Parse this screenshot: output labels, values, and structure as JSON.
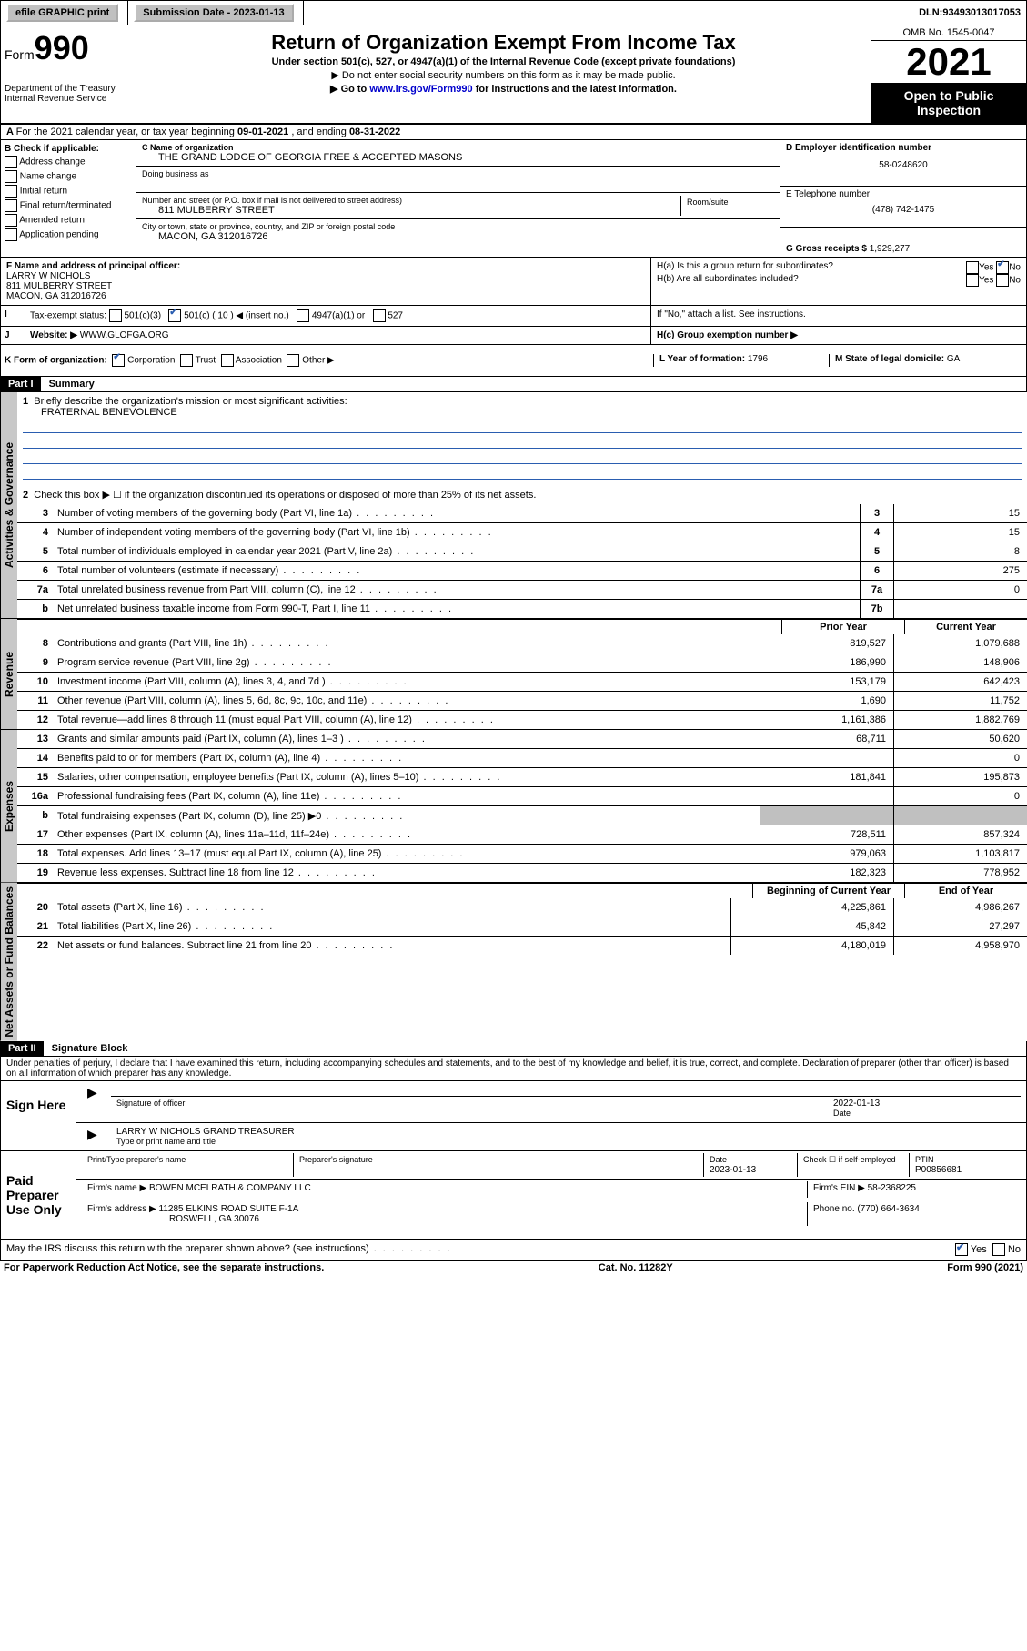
{
  "topbar": {
    "efile": "efile GRAPHIC print",
    "submission_label": "Submission Date - ",
    "submission_date": "2023-01-13",
    "dln_label": "DLN: ",
    "dln": "93493013017053"
  },
  "header": {
    "form_prefix": "Form",
    "form_number": "990",
    "dept": "Department of the Treasury\nInternal Revenue Service",
    "title": "Return of Organization Exempt From Income Tax",
    "subtitle": "Under section 501(c), 527, or 4947(a)(1) of the Internal Revenue Code (except private foundations)",
    "note1": "▶ Do not enter social security numbers on this form as it may be made public.",
    "note2_pre": "▶ Go to ",
    "note2_link": "www.irs.gov/Form990",
    "note2_post": " for instructions and the latest information.",
    "omb": "OMB No. 1545-0047",
    "year": "2021",
    "inspection": "Open to Public Inspection"
  },
  "section_a": {
    "text_pre": "For the 2021 calendar year, or tax year beginning ",
    "begin": "09-01-2021",
    "mid": " , and ending ",
    "end": "08-31-2022"
  },
  "section_b": {
    "label": "B Check if applicable:",
    "items": [
      "Address change",
      "Name change",
      "Initial return",
      "Final return/terminated",
      "Amended return",
      "Application pending"
    ]
  },
  "section_c": {
    "name_label": "C Name of organization",
    "name": "THE GRAND LODGE OF GEORGIA FREE & ACCEPTED MASONS",
    "dba_label": "Doing business as",
    "street_label": "Number and street (or P.O. box if mail is not delivered to street address)",
    "room_label": "Room/suite",
    "street": "811 MULBERRY STREET",
    "city_label": "City or town, state or province, country, and ZIP or foreign postal code",
    "city": "MACON, GA  312016726"
  },
  "section_d": {
    "label": "D Employer identification number",
    "value": "58-0248620"
  },
  "section_e": {
    "label": "E Telephone number",
    "value": "(478) 742-1475"
  },
  "section_g": {
    "label": "G Gross receipts $ ",
    "value": "1,929,277"
  },
  "section_f": {
    "label": "F  Name and address of principal officer:",
    "name": "LARRY W NICHOLS",
    "addr1": "811 MULBERRY STREET",
    "addr2": "MACON, GA  312016726"
  },
  "section_h": {
    "ha": "H(a)  Is this a group return for subordinates?",
    "hb": "H(b)  Are all subordinates included?",
    "hb_note": "If \"No,\" attach a list. See instructions.",
    "hc": "H(c)  Group exemption number ▶",
    "yes": "Yes",
    "no": "No"
  },
  "section_i": {
    "label": "Tax-exempt status:",
    "opt1": "501(c)(3)",
    "opt2": "501(c) ( 10 ) ◀ (insert no.)",
    "opt3": "4947(a)(1) or",
    "opt4": "527"
  },
  "section_j": {
    "label": "Website: ▶ ",
    "value": "WWW.GLOFGA.ORG"
  },
  "section_k": {
    "label": "K Form of organization:",
    "opts": [
      "Corporation",
      "Trust",
      "Association",
      "Other ▶"
    ]
  },
  "section_l": {
    "label": "L Year of formation: ",
    "value": "1796"
  },
  "section_m": {
    "label": "M State of legal domicile: ",
    "value": "GA"
  },
  "part1": {
    "header": "Part I",
    "title": "Summary",
    "q1": "Briefly describe the organization's mission or most significant activities:",
    "q1_answer": "FRATERNAL BENEVOLENCE",
    "q2": "Check this box ▶ ☐  if the organization discontinued its operations or disposed of more than 25% of its net assets.",
    "lines_gov": [
      {
        "n": "3",
        "t": "Number of voting members of the governing body (Part VI, line 1a)",
        "box": "3",
        "v": "15"
      },
      {
        "n": "4",
        "t": "Number of independent voting members of the governing body (Part VI, line 1b)",
        "box": "4",
        "v": "15"
      },
      {
        "n": "5",
        "t": "Total number of individuals employed in calendar year 2021 (Part V, line 2a)",
        "box": "5",
        "v": "8"
      },
      {
        "n": "6",
        "t": "Total number of volunteers (estimate if necessary)",
        "box": "6",
        "v": "275"
      },
      {
        "n": "7a",
        "t": "Total unrelated business revenue from Part VIII, column (C), line 12",
        "box": "7a",
        "v": "0"
      },
      {
        "n": "b",
        "t": "Net unrelated business taxable income from Form 990-T, Part I, line 11",
        "box": "7b",
        "v": ""
      }
    ],
    "col_prior": "Prior Year",
    "col_current": "Current Year",
    "lines_rev": [
      {
        "n": "8",
        "t": "Contributions and grants (Part VIII, line 1h)",
        "p": "819,527",
        "c": "1,079,688"
      },
      {
        "n": "9",
        "t": "Program service revenue (Part VIII, line 2g)",
        "p": "186,990",
        "c": "148,906"
      },
      {
        "n": "10",
        "t": "Investment income (Part VIII, column (A), lines 3, 4, and 7d )",
        "p": "153,179",
        "c": "642,423"
      },
      {
        "n": "11",
        "t": "Other revenue (Part VIII, column (A), lines 5, 6d, 8c, 9c, 10c, and 11e)",
        "p": "1,690",
        "c": "11,752"
      },
      {
        "n": "12",
        "t": "Total revenue—add lines 8 through 11 (must equal Part VIII, column (A), line 12)",
        "p": "1,161,386",
        "c": "1,882,769"
      }
    ],
    "lines_exp": [
      {
        "n": "13",
        "t": "Grants and similar amounts paid (Part IX, column (A), lines 1–3 )",
        "p": "68,711",
        "c": "50,620"
      },
      {
        "n": "14",
        "t": "Benefits paid to or for members (Part IX, column (A), line 4)",
        "p": "",
        "c": "0"
      },
      {
        "n": "15",
        "t": "Salaries, other compensation, employee benefits (Part IX, column (A), lines 5–10)",
        "p": "181,841",
        "c": "195,873"
      },
      {
        "n": "16a",
        "t": "Professional fundraising fees (Part IX, column (A), line 11e)",
        "p": "",
        "c": "0"
      },
      {
        "n": "b",
        "t": "Total fundraising expenses (Part IX, column (D), line 25) ▶0",
        "p": "shade",
        "c": "shade"
      },
      {
        "n": "17",
        "t": "Other expenses (Part IX, column (A), lines 11a–11d, 11f–24e)",
        "p": "728,511",
        "c": "857,324"
      },
      {
        "n": "18",
        "t": "Total expenses. Add lines 13–17 (must equal Part IX, column (A), line 25)",
        "p": "979,063",
        "c": "1,103,817"
      },
      {
        "n": "19",
        "t": "Revenue less expenses. Subtract line 18 from line 12",
        "p": "182,323",
        "c": "778,952"
      }
    ],
    "col_begin": "Beginning of Current Year",
    "col_end": "End of Year",
    "lines_net": [
      {
        "n": "20",
        "t": "Total assets (Part X, line 16)",
        "p": "4,225,861",
        "c": "4,986,267"
      },
      {
        "n": "21",
        "t": "Total liabilities (Part X, line 26)",
        "p": "45,842",
        "c": "27,297"
      },
      {
        "n": "22",
        "t": "Net assets or fund balances. Subtract line 21 from line 20",
        "p": "4,180,019",
        "c": "4,958,970"
      }
    ],
    "vtab_gov": "Activities & Governance",
    "vtab_rev": "Revenue",
    "vtab_exp": "Expenses",
    "vtab_net": "Net Assets or Fund Balances"
  },
  "part2": {
    "header": "Part II",
    "title": "Signature Block",
    "penalty": "Under penalties of perjury, I declare that I have examined this return, including accompanying schedules and statements, and to the best of my knowledge and belief, it is true, correct, and complete. Declaration of preparer (other than officer) is based on all information of which preparer has any knowledge.",
    "sign_here": "Sign Here",
    "sig_officer": "Signature of officer",
    "sig_date": "Date",
    "sig_date_val": "2022-01-13",
    "officer_name": "LARRY W NICHOLS GRAND TREASURER",
    "type_name": "Type or print name and title",
    "paid_prep": "Paid Preparer Use Only",
    "prep_name_label": "Print/Type preparer's name",
    "prep_sig_label": "Preparer's signature",
    "prep_date_label": "Date",
    "prep_date": "2023-01-13",
    "prep_check": "Check ☐ if self-employed",
    "ptin_label": "PTIN",
    "ptin": "P00856681",
    "firm_name_label": "Firm's name    ▶ ",
    "firm_name": "BOWEN MCELRATH & COMPANY LLC",
    "firm_ein_label": "Firm's EIN ▶ ",
    "firm_ein": "58-2368225",
    "firm_addr_label": "Firm's address ▶ ",
    "firm_addr1": "11285 ELKINS ROAD SUITE F-1A",
    "firm_addr2": "ROSWELL, GA  30076",
    "phone_label": "Phone no. ",
    "phone": "(770) 664-3634",
    "discuss": "May the IRS discuss this return with the preparer shown above? (see instructions)"
  },
  "footer": {
    "left": "For Paperwork Reduction Act Notice, see the separate instructions.",
    "mid": "Cat. No. 11282Y",
    "right": "Form 990 (2021)"
  }
}
